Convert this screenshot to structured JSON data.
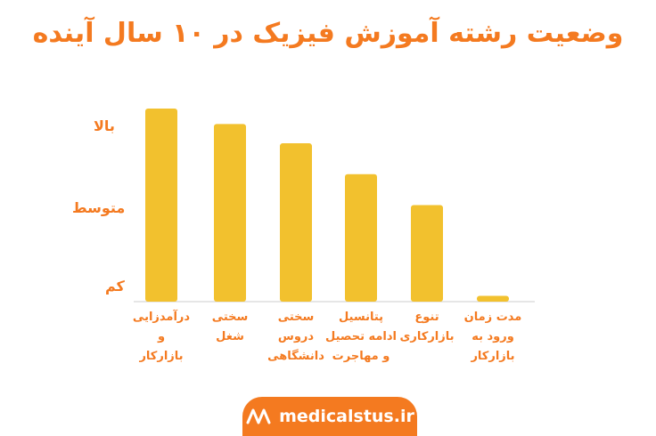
{
  "title": "وضعیت رشته آموزش فیزیک در ۱۰ سال آینده",
  "brand": {
    "text": "medicalstus.ir",
    "logo_icon": "medicalstus-logo-icon"
  },
  "colors": {
    "bar": "#f2c12e",
    "accent": "#f47a20",
    "axis": "#dedede"
  },
  "chart_data": {
    "type": "bar",
    "title": "وضعیت رشته آموزش فیزیک در ۱۰ سال آینده",
    "categories": [
      "درآمدزایی\nو\nبازارکار",
      "سختی\nشغل",
      "سختی\nدروس\nدانشگاهی",
      "پتانسیل\nادامه تحصیل\nو مهاجرت",
      "تنوع\nبازارکاری",
      "مدت زمان\nورود به\nبازارکار"
    ],
    "values": [
      1.0,
      0.92,
      0.82,
      0.66,
      0.5,
      0.03
    ],
    "y_tick_labels": [
      "کم",
      "متوسط",
      "بالا"
    ],
    "ylim": [
      0,
      1
    ],
    "grid": false,
    "legend": "none"
  }
}
